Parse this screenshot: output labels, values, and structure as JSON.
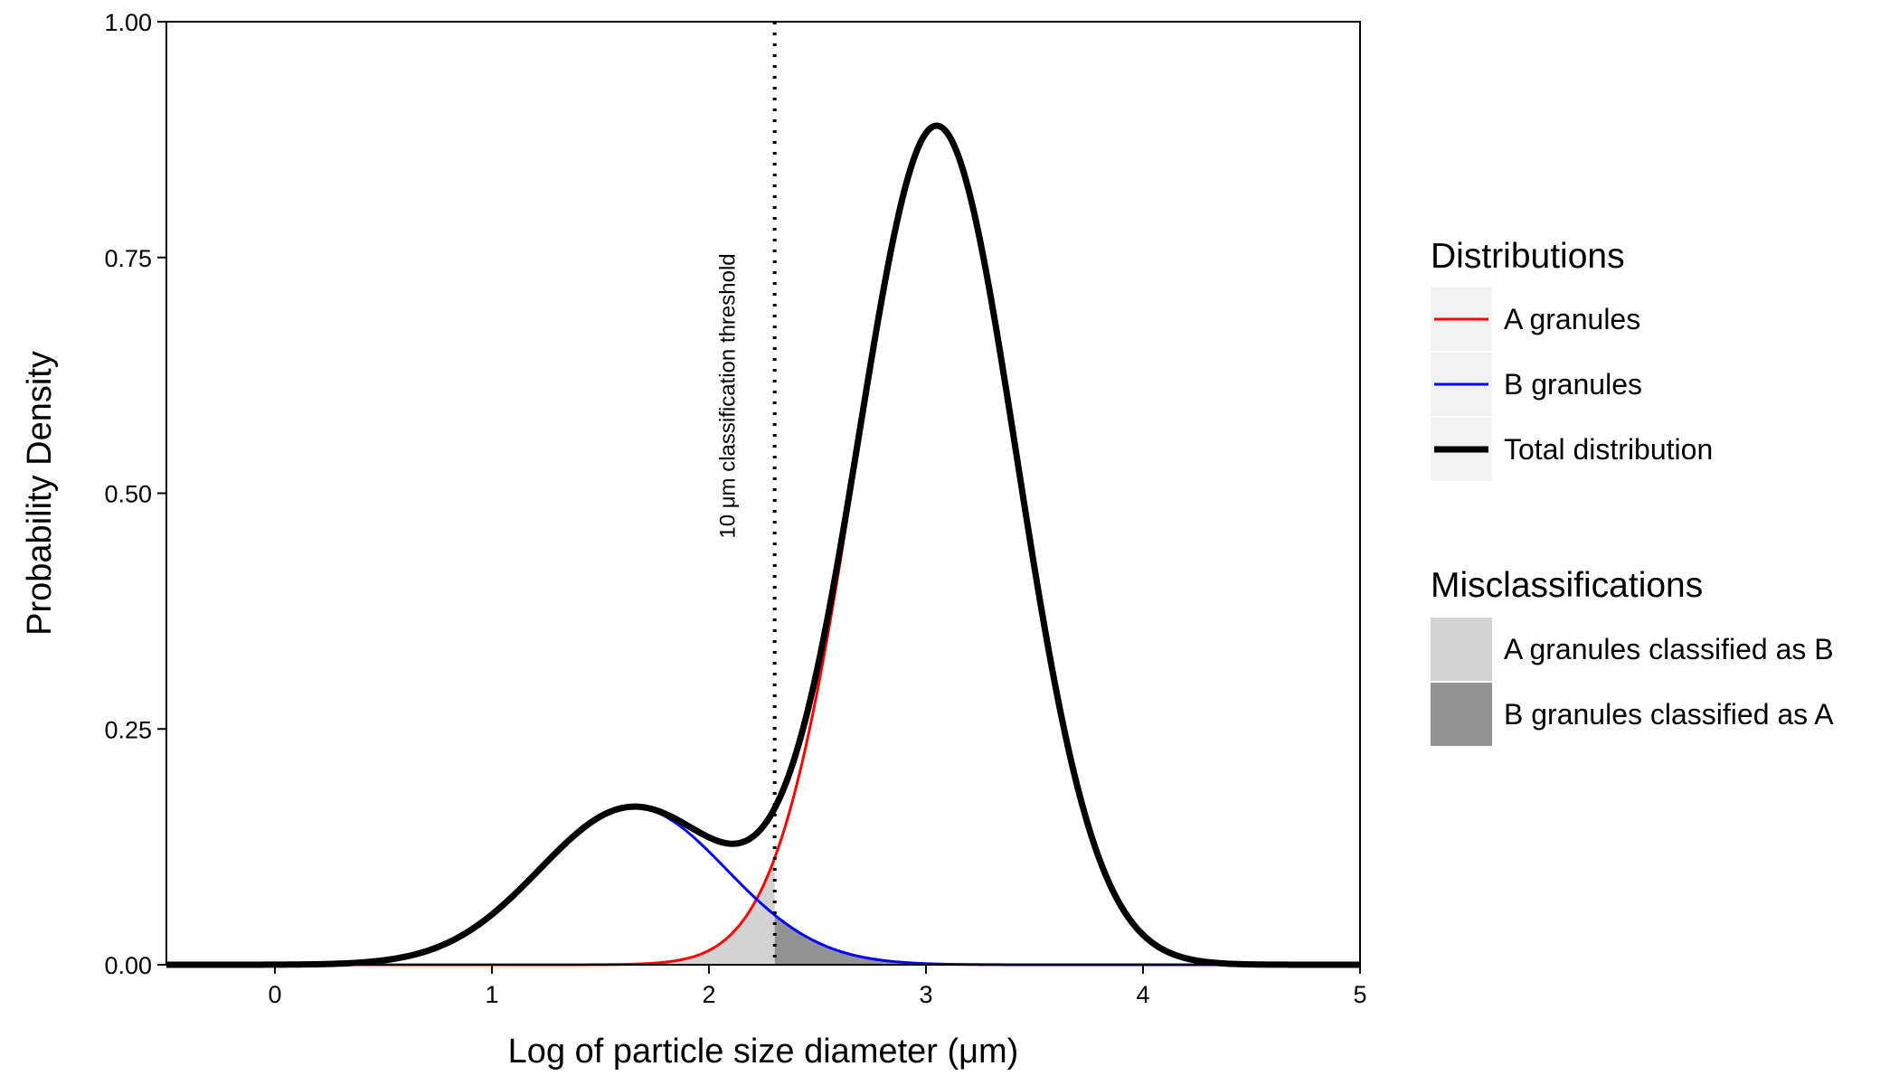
{
  "chart_data": {
    "type": "line",
    "xlabel": "Log of particle size diameter (μm)",
    "ylabel": "Probability Density",
    "xlim": [
      -0.5,
      5
    ],
    "ylim": [
      0,
      1
    ],
    "x_ticks": [
      0,
      1,
      2,
      3,
      4,
      5
    ],
    "x_tick_labels": [
      "0",
      "1",
      "2",
      "3",
      "4",
      "5"
    ],
    "y_ticks": [
      0,
      0.25,
      0.5,
      0.75,
      1.0
    ],
    "y_tick_labels": [
      "0.00",
      "0.25",
      "0.50",
      "0.75",
      "1.00"
    ],
    "threshold": {
      "x": 2.303,
      "label": "10 μm classification threshold",
      "style": "dotted"
    },
    "components": {
      "A": {
        "type": "normal",
        "mean": 3.05,
        "sd": 0.368,
        "weight": 0.82
      },
      "B": {
        "type": "normal",
        "mean": 1.65,
        "sd": 0.43,
        "weight": 0.18
      }
    },
    "series": [
      {
        "name": "A granules",
        "color": "#ff0000",
        "key": "A"
      },
      {
        "name": "B granules",
        "color": "#0000ff",
        "key": "B"
      },
      {
        "name": "Total distribution",
        "color": "#000000",
        "key": "total"
      }
    ],
    "shaded_areas": [
      {
        "name": "A granules classified as B",
        "color": "#d3d3d3",
        "under": "A",
        "from": -0.5,
        "to": 2.303
      },
      {
        "name": "B granules classified as A",
        "color": "#939393",
        "under": "B",
        "from": 2.303,
        "to": 5
      }
    ],
    "grid": false
  },
  "legend": {
    "distributions_title": "Distributions",
    "distributions": [
      {
        "label": "A granules",
        "color": "#ff0000",
        "key": "A"
      },
      {
        "label": "B granules",
        "color": "#0000ff",
        "key": "B"
      },
      {
        "label": "Total distribution",
        "color": "#000000",
        "key": "total"
      }
    ],
    "misclassifications_title": "Misclassifications",
    "misclassifications": [
      {
        "label": "A granules classified as B",
        "color": "#d3d3d3"
      },
      {
        "label": "B granules classified as A",
        "color": "#939393"
      }
    ],
    "key_background": "#f2f2f2"
  }
}
